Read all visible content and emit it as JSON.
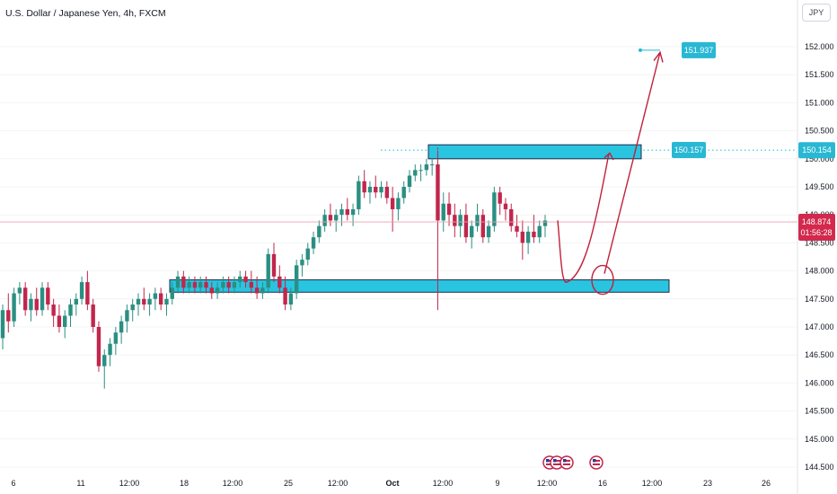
{
  "header": {
    "title": "U.S. Dollar / Japanese Yen, 4h, FXCM",
    "currency": "JPY"
  },
  "price_labels": {
    "current_price": "148.874",
    "countdown": "01:56:28",
    "level_right": "150.154",
    "level_box": "150.157",
    "target": "151.937"
  },
  "colors": {
    "up_candle": "#2a8f82",
    "down_candle": "#c1264c",
    "zone_fill": "#29c4e0",
    "zone_stroke": "#1c2b4a",
    "projection": "#c0213c",
    "label_bg": "#29b8d4",
    "price_tag": "#d2294d"
  },
  "chart_data": {
    "type": "candlestick",
    "ylim": [
      144.5,
      152.3
    ],
    "y_ticks": [
      144.5,
      145.0,
      145.5,
      146.0,
      146.5,
      147.0,
      147.5,
      148.0,
      148.5,
      149.0,
      149.5,
      150.0,
      150.5,
      151.0,
      151.5,
      152.0
    ],
    "y_tick_labels": [
      "144.500",
      "145.000",
      "145.500",
      "146.000",
      "146.500",
      "147.000",
      "147.500",
      "148.000",
      "148.500",
      "149.000",
      "149.500",
      "150.000",
      "150.500",
      "151.000",
      "151.500",
      "152.000"
    ],
    "x_tick_labels": [
      "6",
      "11",
      "12:00",
      "18",
      "12:00",
      "25",
      "12:00",
      "Oct",
      "12:00",
      "9",
      "12:00",
      "16",
      "12:00",
      "23",
      "26"
    ],
    "current_price": 148.874,
    "dotted_level": 150.154,
    "zones": [
      {
        "name": "resistance",
        "low": 150.0,
        "high": 150.25
      },
      {
        "name": "support",
        "low": 147.62,
        "high": 147.84
      }
    ],
    "projection_path": [
      148.9,
      147.8,
      147.9,
      149.3,
      150.1,
      150.15,
      151.9
    ],
    "target_price": 151.937,
    "candles": [
      [
        146.8,
        147.4,
        146.6,
        147.3
      ],
      [
        147.3,
        147.6,
        146.9,
        147.1
      ],
      [
        147.1,
        147.7,
        147.0,
        147.6
      ],
      [
        147.6,
        147.8,
        147.4,
        147.7
      ],
      [
        147.7,
        147.8,
        147.2,
        147.3
      ],
      [
        147.3,
        147.6,
        147.1,
        147.5
      ],
      [
        147.5,
        147.7,
        147.2,
        147.3
      ],
      [
        147.3,
        147.8,
        147.2,
        147.7
      ],
      [
        147.7,
        147.8,
        147.3,
        147.4
      ],
      [
        147.4,
        147.5,
        147.0,
        147.2
      ],
      [
        147.2,
        147.4,
        146.9,
        147.0
      ],
      [
        147.0,
        147.3,
        146.8,
        147.2
      ],
      [
        147.2,
        147.5,
        147.0,
        147.4
      ],
      [
        147.4,
        147.6,
        147.2,
        147.5
      ],
      [
        147.5,
        147.9,
        147.4,
        147.8
      ],
      [
        147.8,
        148.0,
        147.3,
        147.4
      ],
      [
        147.4,
        147.5,
        146.9,
        147.0
      ],
      [
        147.0,
        147.1,
        146.2,
        146.3
      ],
      [
        146.3,
        146.6,
        145.9,
        146.5
      ],
      [
        146.5,
        146.8,
        146.3,
        146.7
      ],
      [
        146.7,
        147.0,
        146.5,
        146.9
      ],
      [
        146.9,
        147.2,
        146.7,
        147.1
      ],
      [
        147.1,
        147.4,
        146.9,
        147.3
      ],
      [
        147.3,
        147.5,
        147.1,
        147.4
      ],
      [
        147.4,
        147.6,
        147.2,
        147.5
      ],
      [
        147.5,
        147.7,
        147.3,
        147.4
      ],
      [
        147.4,
        147.6,
        147.2,
        147.5
      ],
      [
        147.5,
        147.7,
        147.3,
        147.6
      ],
      [
        147.6,
        147.7,
        147.3,
        147.4
      ],
      [
        147.4,
        147.6,
        147.2,
        147.5
      ],
      [
        147.5,
        147.8,
        147.4,
        147.7
      ],
      [
        147.7,
        148.0,
        147.6,
        147.9
      ],
      [
        147.9,
        148.0,
        147.6,
        147.7
      ],
      [
        147.7,
        147.9,
        147.6,
        147.8
      ],
      [
        147.8,
        147.9,
        147.6,
        147.7
      ],
      [
        147.7,
        147.9,
        147.6,
        147.8
      ],
      [
        147.8,
        147.9,
        147.6,
        147.7
      ],
      [
        147.7,
        147.8,
        147.5,
        147.6
      ],
      [
        147.6,
        147.8,
        147.5,
        147.7
      ],
      [
        147.7,
        147.9,
        147.6,
        147.8
      ],
      [
        147.8,
        147.9,
        147.6,
        147.7
      ],
      [
        147.7,
        147.9,
        147.6,
        147.8
      ],
      [
        147.8,
        148.0,
        147.7,
        147.9
      ],
      [
        147.9,
        148.0,
        147.7,
        147.8
      ],
      [
        147.8,
        148.0,
        147.6,
        147.7
      ],
      [
        147.7,
        147.9,
        147.5,
        147.6
      ],
      [
        147.6,
        147.8,
        147.5,
        147.7
      ],
      [
        147.7,
        148.4,
        147.6,
        148.3
      ],
      [
        148.3,
        148.5,
        147.8,
        147.9
      ],
      [
        147.9,
        148.1,
        147.6,
        147.7
      ],
      [
        147.7,
        147.9,
        147.3,
        147.4
      ],
      [
        147.4,
        147.7,
        147.3,
        147.6
      ],
      [
        147.6,
        148.2,
        147.5,
        148.1
      ],
      [
        148.1,
        148.3,
        147.9,
        148.2
      ],
      [
        148.2,
        148.5,
        148.1,
        148.4
      ],
      [
        148.4,
        148.7,
        148.3,
        148.6
      ],
      [
        148.6,
        148.9,
        148.5,
        148.8
      ],
      [
        148.8,
        149.1,
        148.7,
        149.0
      ],
      [
        149.0,
        149.2,
        148.8,
        148.9
      ],
      [
        148.9,
        149.1,
        148.7,
        149.0
      ],
      [
        149.0,
        149.2,
        148.8,
        149.1
      ],
      [
        149.1,
        149.3,
        148.9,
        149.0
      ],
      [
        149.0,
        149.2,
        148.8,
        149.1
      ],
      [
        149.1,
        149.7,
        149.0,
        149.6
      ],
      [
        149.6,
        149.8,
        149.3,
        149.4
      ],
      [
        149.4,
        149.6,
        149.2,
        149.5
      ],
      [
        149.5,
        149.7,
        149.3,
        149.4
      ],
      [
        149.4,
        149.6,
        149.3,
        149.5
      ],
      [
        149.5,
        149.6,
        149.2,
        149.3
      ],
      [
        149.3,
        149.5,
        148.7,
        149.1
      ],
      [
        149.1,
        149.4,
        148.9,
        149.3
      ],
      [
        149.3,
        149.6,
        149.2,
        149.5
      ],
      [
        149.5,
        149.8,
        149.4,
        149.7
      ],
      [
        149.7,
        149.9,
        149.6,
        149.8
      ],
      [
        149.8,
        149.9,
        149.6,
        149.8
      ],
      [
        149.8,
        150.0,
        149.7,
        149.9
      ],
      [
        149.9,
        150.0,
        149.7,
        149.9
      ],
      [
        149.9,
        150.2,
        147.3,
        148.9
      ],
      [
        148.9,
        149.4,
        148.7,
        149.2
      ],
      [
        149.2,
        149.4,
        148.8,
        149.0
      ],
      [
        149.0,
        149.2,
        148.6,
        148.8
      ],
      [
        148.8,
        149.1,
        148.6,
        149.0
      ],
      [
        149.0,
        149.2,
        148.5,
        148.6
      ],
      [
        148.6,
        148.9,
        148.4,
        148.8
      ],
      [
        148.8,
        149.2,
        148.7,
        149.0
      ],
      [
        149.0,
        149.1,
        148.5,
        148.6
      ],
      [
        148.6,
        148.9,
        148.5,
        148.8
      ],
      [
        148.8,
        149.5,
        148.7,
        149.4
      ],
      [
        149.4,
        149.5,
        149.0,
        149.2
      ],
      [
        149.2,
        149.3,
        148.9,
        149.1
      ],
      [
        149.1,
        149.2,
        148.7,
        148.8
      ],
      [
        148.8,
        149.0,
        148.6,
        148.7
      ],
      [
        148.7,
        148.9,
        148.2,
        148.5
      ],
      [
        148.5,
        148.8,
        148.3,
        148.7
      ],
      [
        148.7,
        149.0,
        148.5,
        148.6
      ],
      [
        148.6,
        148.9,
        148.5,
        148.8
      ],
      [
        148.8,
        149.0,
        148.6,
        148.9
      ]
    ]
  }
}
